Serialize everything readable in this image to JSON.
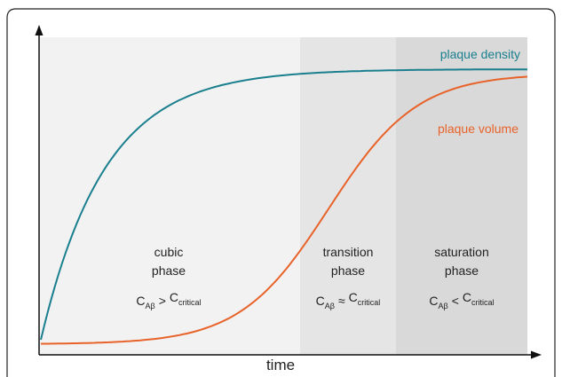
{
  "labels": {
    "plaque_density": "plaque density",
    "plaque_volume": "plaque volume",
    "x_axis": "time"
  },
  "phases": [
    {
      "line1": "cubic",
      "line2": "phase",
      "left": "C",
      "left_sub": "Aβ",
      "op": ">",
      "right": "C",
      "right_sub": "critical"
    },
    {
      "line1": "transition",
      "line2": "phase",
      "left": "C",
      "left_sub": "Aβ",
      "op": "≈",
      "right": "C",
      "right_sub": "critical"
    },
    {
      "line1": "saturation",
      "line2": "phase",
      "left": "C",
      "left_sub": "Aβ",
      "op": "<",
      "right": "C",
      "right_sub": "critical"
    }
  ]
}
